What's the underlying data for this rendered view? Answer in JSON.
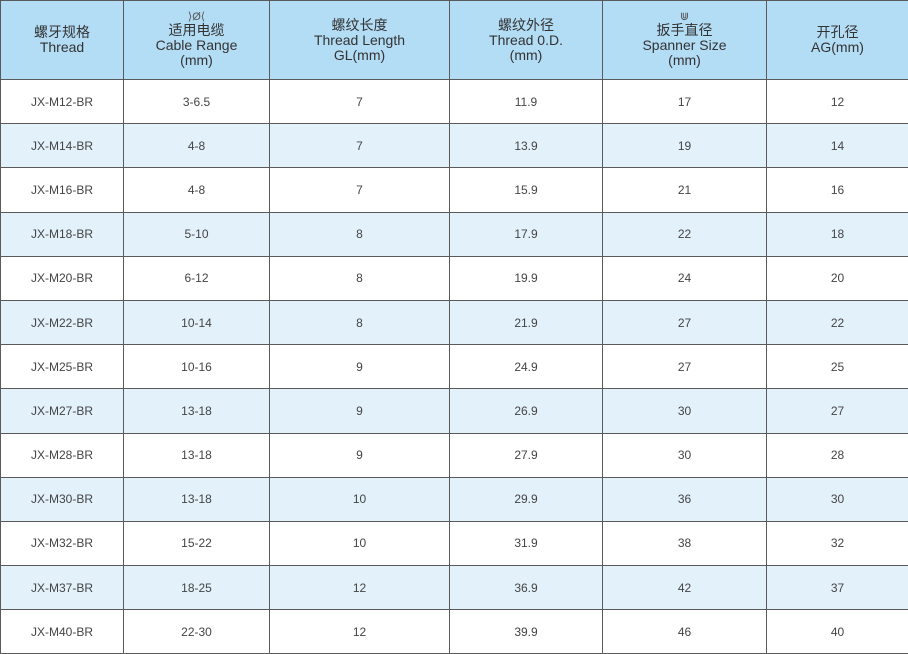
{
  "headers": [
    {
      "icon": "",
      "cn": "螺牙规格",
      "en": "Thread",
      "unit": ""
    },
    {
      "icon": "cable-range-icon",
      "cn": "适用电缆",
      "en": "Cable Range",
      "unit": "(mm)"
    },
    {
      "icon": "",
      "cn": "螺纹长度",
      "en": "Thread Length",
      "unit": "GL(mm)"
    },
    {
      "icon": "",
      "cn": "螺纹外径",
      "en": "Thread 0.D.",
      "unit": "(mm)"
    },
    {
      "icon": "spanner-icon",
      "cn": "扳手直径",
      "en": "Spanner Size",
      "unit": "(mm)"
    },
    {
      "icon": "",
      "cn": "开孔径",
      "en": "AG(mm)",
      "unit": ""
    }
  ],
  "rows": [
    [
      "JX-M12-BR",
      "3-6.5",
      "7",
      "11.9",
      "17",
      "12"
    ],
    [
      "JX-M14-BR",
      "4-8",
      "7",
      "13.9",
      "19",
      "14"
    ],
    [
      "JX-M16-BR",
      "4-8",
      "7",
      "15.9",
      "21",
      "16"
    ],
    [
      "JX-M18-BR",
      "5-10",
      "8",
      "17.9",
      "22",
      "18"
    ],
    [
      "JX-M20-BR",
      "6-12",
      "8",
      "19.9",
      "24",
      "20"
    ],
    [
      "JX-M22-BR",
      "10-14",
      "8",
      "21.9",
      "27",
      "22"
    ],
    [
      "JX-M25-BR",
      "10-16",
      "9",
      "24.9",
      "27",
      "25"
    ],
    [
      "JX-M27-BR",
      "13-18",
      "9",
      "26.9",
      "30",
      "27"
    ],
    [
      "JX-M28-BR",
      "13-18",
      "9",
      "27.9",
      "30",
      "28"
    ],
    [
      "JX-M30-BR",
      "13-18",
      "10",
      "29.9",
      "36",
      "30"
    ],
    [
      "JX-M32-BR",
      "15-22",
      "10",
      "31.9",
      "38",
      "32"
    ],
    [
      "JX-M37-BR",
      "18-25",
      "12",
      "36.9",
      "42",
      "37"
    ],
    [
      "JX-M40-BR",
      "22-30",
      "12",
      "39.9",
      "46",
      "40"
    ]
  ]
}
